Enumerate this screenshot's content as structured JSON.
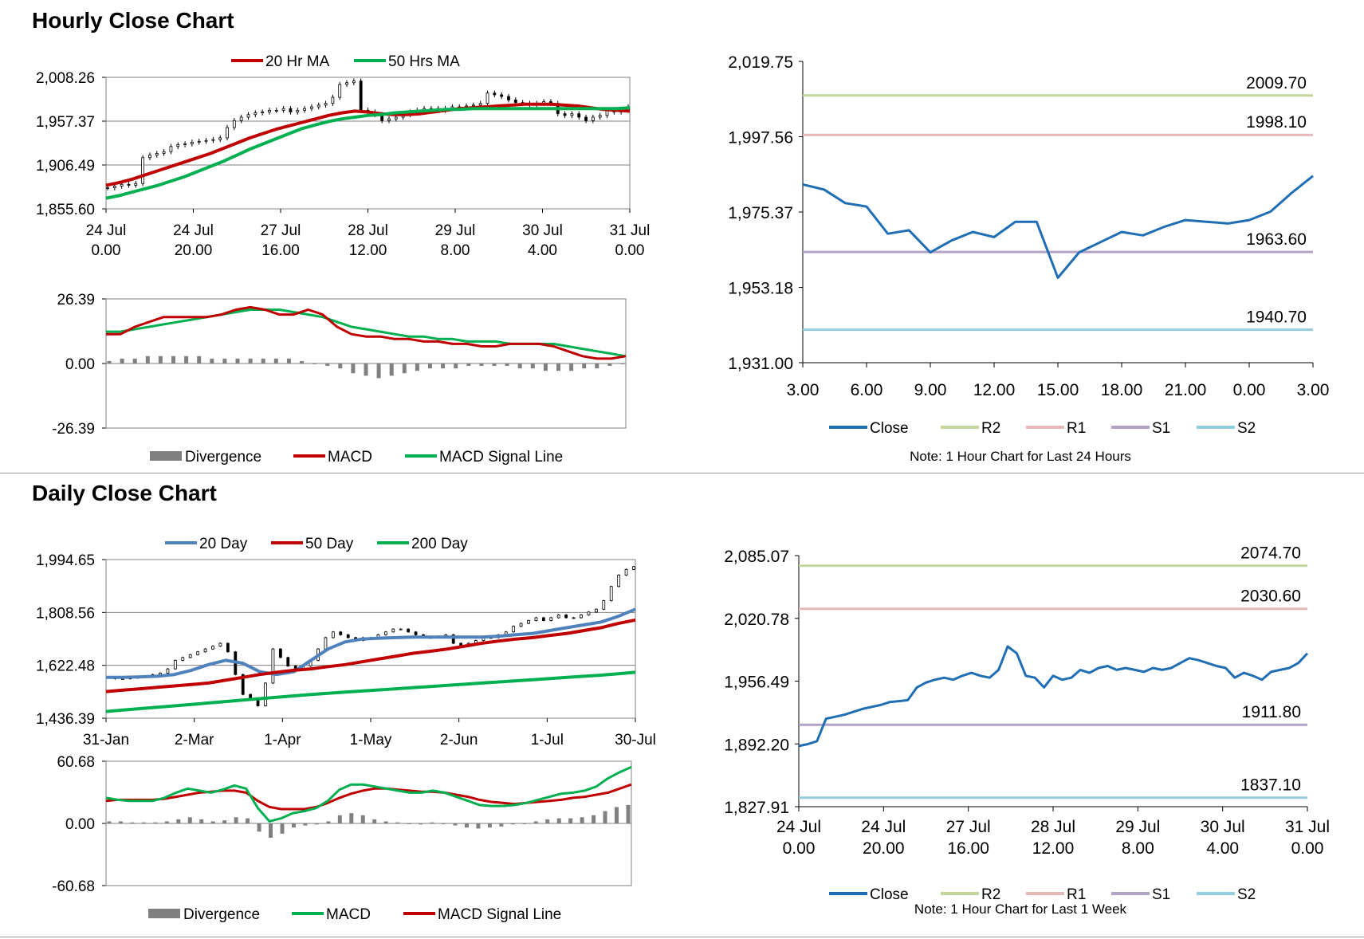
{
  "sections": {
    "hourly_title": "Hourly Close Chart",
    "daily_title": "Daily Close Chart"
  },
  "colors": {
    "ma20_hr": "#c00000",
    "ma50_hr": "#00b050",
    "day20": "#4f81bd",
    "day50": "#c00000",
    "day200": "#00b050",
    "close": "#1f6eb4",
    "r2": "#c3d69b",
    "r1": "#e6b9b8",
    "s1": "#b3a2c7",
    "s2": "#93cddd",
    "macd_red": "#c00000",
    "macd_green": "#00b050",
    "divergence": "#808080",
    "axis": "#000000",
    "grid": "#808080"
  },
  "chart_data": [
    {
      "id": "hourly_price",
      "type": "candlestick",
      "legend": [
        "20 Hr MA",
        "50 Hrs MA"
      ],
      "yticks": [
        "2,008.26",
        "1,957.37",
        "1,906.49",
        "1,855.60"
      ],
      "ylim": [
        1855.6,
        2008.26
      ],
      "xticks": [
        [
          "24 Jul",
          "0.00"
        ],
        [
          "24 Jul",
          "20.00"
        ],
        [
          "27 Jul",
          "16.00"
        ],
        [
          "28 Jul",
          "12.00"
        ],
        [
          "29 Jul",
          "8.00"
        ],
        [
          "30 Jul",
          "4.00"
        ],
        [
          "31 Jul",
          "0.00"
        ]
      ],
      "close": [
        1880,
        1882,
        1884,
        1883,
        1885,
        1915,
        1918,
        1920,
        1922,
        1928,
        1930,
        1931,
        1933,
        1934,
        1935,
        1936,
        1938,
        1950,
        1958,
        1962,
        1965,
        1967,
        1968,
        1970,
        1970,
        1972,
        1968,
        1970,
        1972,
        1974,
        1976,
        1978,
        1985,
        2000,
        2002,
        2004,
        1970,
        1968,
        1965,
        1958,
        1960,
        1962,
        1965,
        1968,
        1970,
        1972,
        1972,
        1970,
        1972,
        1974,
        1974,
        1975,
        1976,
        1978,
        1990,
        1988,
        1986,
        1982,
        1979,
        1978,
        1976,
        1978,
        1980,
        1978,
        1966,
        1964,
        1966,
        1962,
        1958,
        1962,
        1964,
        1970,
        1968,
        1970,
        1974
      ],
      "ma20": [
        1883,
        1886,
        1890,
        1895,
        1900,
        1905,
        1910,
        1915,
        1920,
        1926,
        1932,
        1938,
        1943,
        1948,
        1952,
        1956,
        1960,
        1964,
        1967,
        1969,
        1968,
        1966,
        1965,
        1965,
        1966,
        1968,
        1970,
        1972,
        1973,
        1974,
        1975,
        1976,
        1977,
        1977,
        1977,
        1976,
        1975,
        1973,
        1971,
        1970,
        1969
      ],
      "ma50": [
        1868,
        1871,
        1875,
        1879,
        1883,
        1888,
        1893,
        1899,
        1905,
        1911,
        1918,
        1925,
        1931,
        1937,
        1943,
        1949,
        1953,
        1957,
        1960,
        1962,
        1964,
        1965,
        1967,
        1968,
        1969,
        1970,
        1971,
        1971,
        1972,
        1972,
        1972,
        1972,
        1972,
        1972,
        1972,
        1972,
        1972,
        1972,
        1972,
        1972,
        1973
      ]
    },
    {
      "id": "hourly_macd",
      "type": "line",
      "legend": [
        "Divergence",
        "MACD",
        "MACD Signal Line"
      ],
      "yticks": [
        "26.39",
        "0.00",
        "-26.39"
      ],
      "ylim": [
        -26.39,
        26.39
      ],
      "macd": [
        12,
        12,
        15,
        17,
        19,
        19,
        19,
        19,
        20,
        22,
        23,
        22,
        20,
        20,
        22,
        20,
        15,
        12,
        11,
        11,
        10,
        10,
        9,
        9,
        8,
        8,
        7,
        7,
        8,
        8,
        8,
        7,
        5,
        3,
        2,
        2,
        3
      ],
      "signal": [
        13,
        13,
        14,
        15,
        16,
        17,
        18,
        19,
        20,
        21,
        22,
        22,
        22,
        21,
        20,
        19,
        17,
        15,
        14,
        13,
        12,
        11,
        11,
        10,
        10,
        9,
        9,
        9,
        8,
        8,
        8,
        8,
        7,
        6,
        5,
        4,
        3
      ],
      "divergence": [
        1,
        2,
        2,
        3,
        3,
        3,
        3,
        3,
        2,
        2,
        2,
        2,
        2,
        2,
        2,
        1,
        0,
        -1,
        -2,
        -4,
        -5,
        -6,
        -5,
        -4,
        -3,
        -2,
        -2,
        -2,
        -1,
        -1,
        -1,
        -1,
        -2,
        -2,
        -3,
        -3,
        -3,
        -2,
        -2,
        -1,
        0
      ]
    },
    {
      "id": "hourly_levels",
      "type": "line",
      "legend": [
        "Close",
        "R2",
        "R1",
        "S1",
        "S2"
      ],
      "note": "Note: 1 Hour Chart for Last 24 Hours",
      "yticks": [
        "2,019.75",
        "1,997.56",
        "1,975.37",
        "1,953.18",
        "1,931.00"
      ],
      "ylim": [
        1931.0,
        2019.75
      ],
      "xticks": [
        "3.00",
        "6.00",
        "9.00",
        "12.00",
        "15.00",
        "18.00",
        "21.00",
        "0.00",
        "3.00"
      ],
      "close": [
        1983.5,
        1982,
        1978,
        1977,
        1969,
        1970,
        1963.5,
        1967,
        1969.5,
        1968,
        1972.5,
        1972.5,
        1956,
        1963.5,
        1966.5,
        1969.5,
        1968.5,
        1971,
        1973,
        1972.5,
        1972,
        1973,
        1975.5,
        1981,
        1986
      ],
      "levels": [
        {
          "name": "R2",
          "value": "2009.70"
        },
        {
          "name": "R1",
          "value": "1998.10"
        },
        {
          "name": "S1",
          "value": "1963.60"
        },
        {
          "name": "S2",
          "value": "1940.70"
        }
      ]
    },
    {
      "id": "daily_price",
      "type": "candlestick",
      "legend": [
        "20 Day",
        "50 Day",
        "200 Day"
      ],
      "yticks": [
        "1,994.65",
        "1,808.56",
        "1,622.48",
        "1,436.39"
      ],
      "ylim": [
        1436.39,
        1994.65
      ],
      "xticks": [
        "31-Jan",
        "2-Mar",
        "1-Apr",
        "1-May",
        "2-Jun",
        "1-Jul",
        "30-Jul"
      ],
      "close": [
        1580,
        1575,
        1575,
        1578,
        1580,
        1585,
        1590,
        1595,
        1610,
        1640,
        1650,
        1660,
        1670,
        1680,
        1690,
        1700,
        1670,
        1590,
        1520,
        1500,
        1480,
        1560,
        1680,
        1650,
        1620,
        1610,
        1620,
        1640,
        1680,
        1720,
        1740,
        1730,
        1720,
        1710,
        1720,
        1720,
        1730,
        1740,
        1750,
        1750,
        1740,
        1730,
        1720,
        1720,
        1725,
        1730,
        1700,
        1690,
        1700,
        1710,
        1720,
        1720,
        1730,
        1740,
        1760,
        1770,
        1780,
        1790,
        1780,
        1790,
        1800,
        1790,
        1790,
        1800,
        1810,
        1820,
        1850,
        1900,
        1940,
        1960,
        1970
      ],
      "ma20": [
        1580,
        1580,
        1582,
        1584,
        1590,
        1605,
        1625,
        1640,
        1630,
        1600,
        1590,
        1600,
        1640,
        1680,
        1705,
        1715,
        1718,
        1720,
        1722,
        1722,
        1722,
        1722,
        1722,
        1725,
        1730,
        1735,
        1745,
        1755,
        1765,
        1775,
        1795,
        1820
      ],
      "ma50": [
        1530,
        1535,
        1540,
        1545,
        1550,
        1555,
        1560,
        1570,
        1580,
        1590,
        1598,
        1605,
        1610,
        1618,
        1625,
        1635,
        1645,
        1655,
        1665,
        1672,
        1680,
        1690,
        1700,
        1708,
        1715,
        1720,
        1728,
        1735,
        1745,
        1755,
        1770,
        1782
      ],
      "ma200": [
        1460,
        1465,
        1470,
        1475,
        1480,
        1485,
        1490,
        1495,
        1500,
        1505,
        1510,
        1515,
        1520,
        1524,
        1528,
        1532,
        1536,
        1540,
        1544,
        1548,
        1552,
        1556,
        1560,
        1564,
        1568,
        1572,
        1576,
        1580,
        1584,
        1588,
        1593,
        1598
      ]
    },
    {
      "id": "daily_macd",
      "type": "line",
      "legend": [
        "Divergence",
        "MACD",
        "MACD Signal Line"
      ],
      "yticks": [
        "60.68",
        "0.00",
        "-60.68"
      ],
      "ylim": [
        -60.68,
        60.68
      ],
      "macd": [
        25,
        23,
        22,
        22,
        22,
        25,
        30,
        34,
        32,
        30,
        33,
        37,
        34,
        15,
        2,
        5,
        10,
        12,
        15,
        22,
        33,
        38,
        38,
        36,
        34,
        32,
        30,
        30,
        32,
        30,
        26,
        22,
        18,
        17,
        17,
        18,
        20,
        23,
        26,
        29,
        30,
        32,
        36,
        44,
        50,
        55
      ],
      "signal": [
        22,
        23,
        23,
        23,
        23,
        24,
        26,
        28,
        30,
        31,
        32,
        32,
        30,
        22,
        16,
        14,
        14,
        14,
        16,
        20,
        25,
        29,
        32,
        34,
        34,
        33,
        32,
        31,
        31,
        30,
        28,
        26,
        23,
        21,
        20,
        19,
        20,
        21,
        22,
        23,
        25,
        26,
        28,
        30,
        34,
        38
      ],
      "divergence": [
        2,
        2,
        1,
        1,
        1,
        2,
        4,
        6,
        4,
        2,
        3,
        6,
        5,
        -8,
        -14,
        -10,
        -4,
        -2,
        -1,
        2,
        8,
        10,
        8,
        4,
        2,
        1,
        0,
        -1,
        1,
        0,
        -2,
        -4,
        -5,
        -4,
        -3,
        -1,
        0,
        2,
        4,
        5,
        5,
        6,
        8,
        12,
        16,
        18
      ]
    },
    {
      "id": "daily_levels",
      "type": "line",
      "legend": [
        "Close",
        "R2",
        "R1",
        "S1",
        "S2"
      ],
      "note": "Note: 1 Hour Chart for Last 1 Week",
      "yticks": [
        "2,085.07",
        "2,020.78",
        "1,956.49",
        "1,892.20",
        "1,827.91"
      ],
      "ylim": [
        1827.91,
        2085.07
      ],
      "xticks": [
        [
          "24 Jul",
          "0.00"
        ],
        [
          "24 Jul",
          "20.00"
        ],
        [
          "27 Jul",
          "16.00"
        ],
        [
          "28 Jul",
          "12.00"
        ],
        [
          "29 Jul",
          "8.00"
        ],
        [
          "30 Jul",
          "4.00"
        ],
        [
          "31 Jul",
          "0.00"
        ]
      ],
      "close": [
        1890,
        1892,
        1895,
        1918,
        1920,
        1922,
        1925,
        1928,
        1930,
        1932,
        1935,
        1936,
        1937,
        1950,
        1955,
        1958,
        1960,
        1958,
        1962,
        1965,
        1962,
        1960,
        1968,
        1992,
        1985,
        1962,
        1960,
        1950,
        1962,
        1958,
        1960,
        1968,
        1965,
        1970,
        1972,
        1968,
        1970,
        1968,
        1966,
        1970,
        1968,
        1970,
        1975,
        1980,
        1978,
        1975,
        1972,
        1970,
        1960,
        1965,
        1962,
        1958,
        1966,
        1968,
        1970,
        1975,
        1985
      ],
      "levels": [
        {
          "name": "R2",
          "value": "2074.70"
        },
        {
          "name": "R1",
          "value": "2030.60"
        },
        {
          "name": "S1",
          "value": "1911.80"
        },
        {
          "name": "S2",
          "value": "1837.10"
        }
      ]
    }
  ]
}
